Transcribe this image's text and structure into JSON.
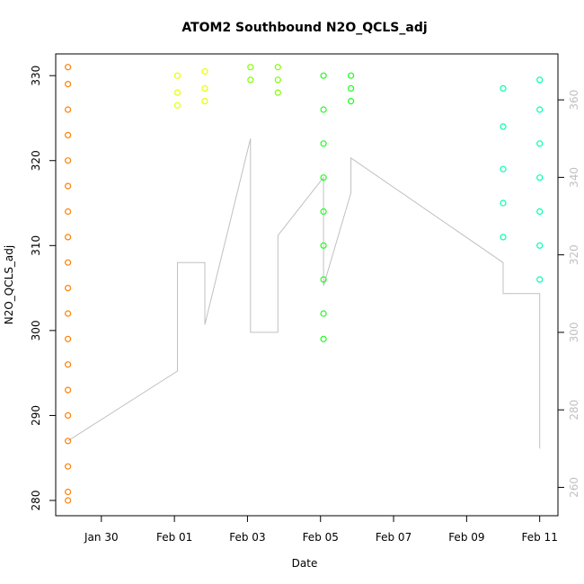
{
  "chart_data": {
    "type": "scatter",
    "title": "ATOM2 Southbound N2O_QCLS_adj",
    "xlabel": "Date",
    "ylabel": "N2O_QCLS_adj",
    "x_domain": [
      "2017-01-28T18:00",
      "2017-02-11T12:00"
    ],
    "y_left_lim": [
      280,
      331.5
    ],
    "y_right_lim": [
      255,
      370
    ],
    "x_ticks": [
      {
        "label": "Jan 30",
        "value": "2017-01-30"
      },
      {
        "label": "Feb 01",
        "value": "2017-02-01"
      },
      {
        "label": "Feb 03",
        "value": "2017-02-03"
      },
      {
        "label": "Feb 05",
        "value": "2017-02-05"
      },
      {
        "label": "Feb 07",
        "value": "2017-02-07"
      },
      {
        "label": "Feb 09",
        "value": "2017-02-09"
      },
      {
        "label": "Feb 11",
        "value": "2017-02-11"
      }
    ],
    "y_left_ticks": [
      280,
      290,
      300,
      310,
      320,
      330
    ],
    "y_right_ticks": [
      260,
      280,
      300,
      320,
      340,
      360
    ],
    "grid": false,
    "flights": [
      {
        "color": "#ff8000",
        "points": [
          {
            "x": "2017-01-29T02:00",
            "y": 331
          },
          {
            "x": "2017-01-29T02:00",
            "y": 329
          },
          {
            "x": "2017-01-29T02:00",
            "y": 326
          },
          {
            "x": "2017-01-29T02:00",
            "y": 323
          },
          {
            "x": "2017-01-29T02:00",
            "y": 320
          },
          {
            "x": "2017-01-29T02:00",
            "y": 317
          },
          {
            "x": "2017-01-29T02:00",
            "y": 314
          },
          {
            "x": "2017-01-29T02:00",
            "y": 311
          },
          {
            "x": "2017-01-29T02:00",
            "y": 308
          },
          {
            "x": "2017-01-29T02:00",
            "y": 305
          },
          {
            "x": "2017-01-29T02:00",
            "y": 302
          },
          {
            "x": "2017-01-29T02:00",
            "y": 299
          },
          {
            "x": "2017-01-29T02:00",
            "y": 296
          },
          {
            "x": "2017-01-29T02:00",
            "y": 293
          },
          {
            "x": "2017-01-29T02:00",
            "y": 290
          },
          {
            "x": "2017-01-29T02:00",
            "y": 287
          },
          {
            "x": "2017-01-29T02:00",
            "y": 284
          },
          {
            "x": "2017-01-29T02:00",
            "y": 281
          },
          {
            "x": "2017-01-29T02:00",
            "y": 280
          }
        ]
      },
      {
        "color": "#e6ff00",
        "points": [
          {
            "x": "2017-02-01T02:00",
            "y": 330
          },
          {
            "x": "2017-02-01T02:00",
            "y": 328
          },
          {
            "x": "2017-02-01T02:00",
            "y": 326.5
          },
          {
            "x": "2017-02-01T20:00",
            "y": 330.5
          },
          {
            "x": "2017-02-01T20:00",
            "y": 328.5
          },
          {
            "x": "2017-02-01T20:00",
            "y": 327
          }
        ]
      },
      {
        "color": "#80ff00",
        "points": [
          {
            "x": "2017-02-03T02:00",
            "y": 331
          },
          {
            "x": "2017-02-03T02:00",
            "y": 329.5
          },
          {
            "x": "2017-02-03T20:00",
            "y": 331
          },
          {
            "x": "2017-02-03T20:00",
            "y": 329.5
          },
          {
            "x": "2017-02-03T20:00",
            "y": 328
          }
        ]
      },
      {
        "color": "#1aff1a",
        "points": [
          {
            "x": "2017-02-05T02:00",
            "y": 330
          },
          {
            "x": "2017-02-05T02:00",
            "y": 326
          },
          {
            "x": "2017-02-05T02:00",
            "y": 322
          },
          {
            "x": "2017-02-05T02:00",
            "y": 318
          },
          {
            "x": "2017-02-05T02:00",
            "y": 314
          },
          {
            "x": "2017-02-05T02:00",
            "y": 310
          },
          {
            "x": "2017-02-05T02:00",
            "y": 306
          },
          {
            "x": "2017-02-05T02:00",
            "y": 302
          },
          {
            "x": "2017-02-05T02:00",
            "y": 299
          },
          {
            "x": "2017-02-05T20:00",
            "y": 330
          },
          {
            "x": "2017-02-05T20:00",
            "y": 328.5
          },
          {
            "x": "2017-02-05T20:00",
            "y": 327
          }
        ]
      },
      {
        "color": "#00ffb2",
        "points": [
          {
            "x": "2017-02-10T00:00",
            "y": 328.5
          },
          {
            "x": "2017-02-10T00:00",
            "y": 324
          },
          {
            "x": "2017-02-10T00:00",
            "y": 319
          },
          {
            "x": "2017-02-10T00:00",
            "y": 315
          },
          {
            "x": "2017-02-10T00:00",
            "y": 311
          },
          {
            "x": "2017-02-11T00:00",
            "y": 329.5
          },
          {
            "x": "2017-02-11T00:00",
            "y": 326
          },
          {
            "x": "2017-02-11T00:00",
            "y": 322
          },
          {
            "x": "2017-02-11T00:00",
            "y": 318
          },
          {
            "x": "2017-02-11T00:00",
            "y": 314
          },
          {
            "x": "2017-02-11T00:00",
            "y": 310
          },
          {
            "x": "2017-02-11T00:00",
            "y": 306
          }
        ]
      }
    ],
    "altitude_series": {
      "axis": "right",
      "color": "#c0c0c0",
      "points": [
        {
          "x": "2017-01-29T02:00",
          "y": 272
        },
        {
          "x": "2017-02-01T02:00",
          "y": 290
        },
        {
          "x": "2017-02-01T02:00",
          "y": 318
        },
        {
          "x": "2017-02-01T20:00",
          "y": 318
        },
        {
          "x": "2017-02-01T20:00",
          "y": 302
        },
        {
          "x": "2017-02-03T02:00",
          "y": 350
        },
        {
          "x": "2017-02-03T02:00",
          "y": 300
        },
        {
          "x": "2017-02-03T20:00",
          "y": 300
        },
        {
          "x": "2017-02-03T20:00",
          "y": 325
        },
        {
          "x": "2017-02-05T02:00",
          "y": 340
        },
        {
          "x": "2017-02-05T02:00",
          "y": 312
        },
        {
          "x": "2017-02-05T20:00",
          "y": 336
        },
        {
          "x": "2017-02-05T20:00",
          "y": 345
        },
        {
          "x": "2017-02-10T00:00",
          "y": 318
        },
        {
          "x": "2017-02-10T00:00",
          "y": 310
        },
        {
          "x": "2017-02-11T00:00",
          "y": 310
        },
        {
          "x": "2017-02-11T00:00",
          "y": 270
        }
      ]
    }
  }
}
